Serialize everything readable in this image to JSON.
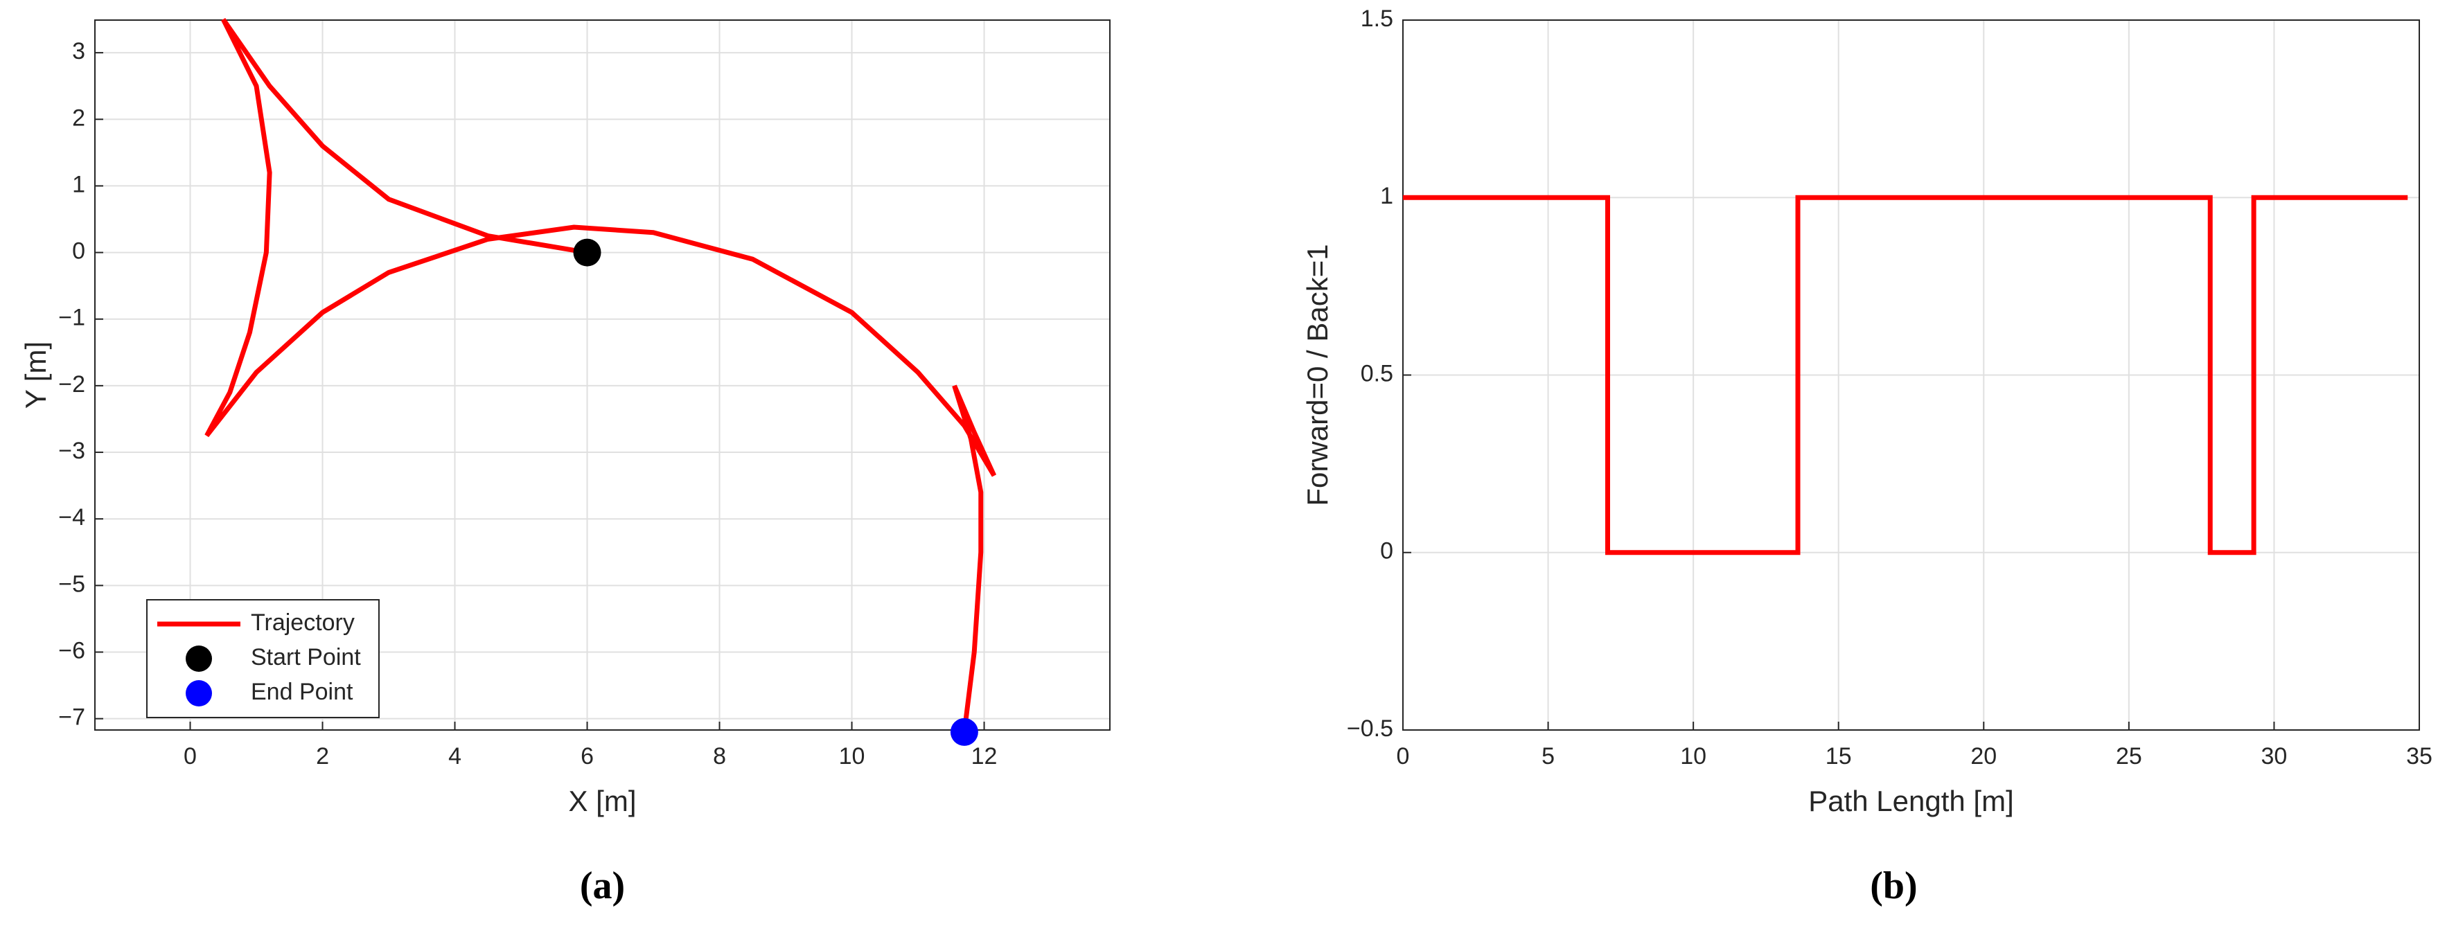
{
  "chart_data": [
    {
      "type": "line",
      "caption": "(a)",
      "xlabel": "X [m]",
      "ylabel": "Y [m]",
      "xlim": [
        -1.44,
        13.9
      ],
      "ylim": [
        -7.17,
        3.49
      ],
      "xticks": [
        0,
        2,
        4,
        6,
        8,
        10,
        12
      ],
      "yticks": [
        {
          "value": -7,
          "label": "−7"
        },
        {
          "value": -6,
          "label": "−6"
        },
        {
          "value": -5,
          "label": "−5"
        },
        {
          "value": -4,
          "label": "−4"
        },
        {
          "value": -3,
          "label": "−3"
        },
        {
          "value": -2,
          "label": "−2"
        },
        {
          "value": -1,
          "label": "−1"
        },
        0,
        1,
        2,
        3
      ],
      "grid": true,
      "legend": "lower left",
      "series": [
        {
          "name": "Trajectory",
          "type": "line",
          "color": "#ff0000",
          "x": [
            6,
            4.5,
            3,
            2,
            1.2,
            0.5,
            1,
            1.2,
            1.15,
            0.9,
            0.6,
            0.25,
            1,
            2,
            3,
            4.5,
            5.8,
            7,
            8.5,
            10,
            11,
            11.7,
            12.15,
            11.85,
            11.55,
            11.8,
            11.95,
            11.95,
            11.85,
            11.7
          ],
          "values": [
            0,
            0.25,
            0.8,
            1.6,
            2.5,
            3.5,
            2.5,
            1.2,
            0,
            -1.2,
            -2.1,
            -2.75,
            -1.8,
            -0.9,
            -0.3,
            0.2,
            0.38,
            0.3,
            -0.1,
            -0.9,
            -1.8,
            -2.6,
            -3.35,
            -2.7,
            -2.0,
            -2.8,
            -3.6,
            -4.5,
            -6,
            -7.2
          ]
        },
        {
          "name": "Start Point",
          "type": "scatter",
          "color": "#000000",
          "x": [
            6
          ],
          "values": [
            0
          ]
        },
        {
          "name": "End Point",
          "type": "scatter",
          "color": "#0000ff",
          "x": [
            11.7
          ],
          "values": [
            -7.2
          ]
        }
      ]
    },
    {
      "type": "line",
      "caption": "(b)",
      "xlabel": "Path Length [m]",
      "ylabel": "Forward=0 / Back=1",
      "xlim": [
        0,
        35
      ],
      "ylim": [
        -0.5,
        1.5
      ],
      "xticks": [
        0,
        5,
        10,
        15,
        20,
        25,
        30,
        35
      ],
      "yticks": [
        {
          "value": -0.5,
          "label": "−0.5"
        },
        0,
        0.5,
        1,
        1.5
      ],
      "grid": true,
      "series": [
        {
          "type": "line",
          "color": "#ff0000",
          "x": [
            0,
            7.05,
            7.05,
            13.6,
            13.6,
            27.8,
            27.8,
            29.3,
            29.3,
            34.6
          ],
          "values": [
            1,
            1,
            0,
            0,
            1,
            1,
            0,
            0,
            1,
            1
          ]
        }
      ]
    }
  ]
}
